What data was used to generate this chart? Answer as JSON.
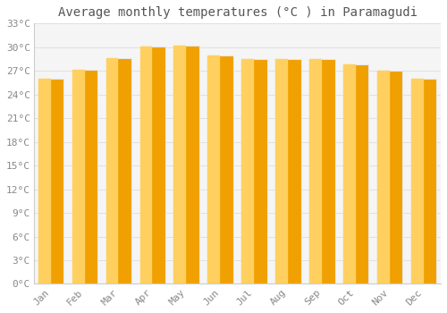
{
  "months": [
    "Jan",
    "Feb",
    "Mar",
    "Apr",
    "May",
    "Jun",
    "Jul",
    "Aug",
    "Sep",
    "Oct",
    "Nov",
    "Dec"
  ],
  "temperatures": [
    26.0,
    27.1,
    28.6,
    30.1,
    30.2,
    29.0,
    28.5,
    28.5,
    28.5,
    27.8,
    27.0,
    26.0
  ],
  "bar_color_left": "#FFD060",
  "bar_color_right": "#F0A000",
  "bar_edge_color": "#E8E8E8",
  "title": "Average monthly temperatures (°C ) in Paramagudi",
  "ylim": [
    0,
    33
  ],
  "yticks": [
    0,
    3,
    6,
    9,
    12,
    15,
    18,
    21,
    24,
    27,
    30,
    33
  ],
  "ytick_labels": [
    "0°C",
    "3°C",
    "6°C",
    "9°C",
    "12°C",
    "15°C",
    "18°C",
    "21°C",
    "24°C",
    "27°C",
    "30°C",
    "33°C"
  ],
  "bg_color": "#ffffff",
  "plot_bg_color": "#f5f5f5",
  "grid_color": "#e0e0e0",
  "title_fontsize": 10,
  "tick_fontsize": 8,
  "title_color": "#555555",
  "tick_color": "#888888",
  "bar_width": 0.75
}
